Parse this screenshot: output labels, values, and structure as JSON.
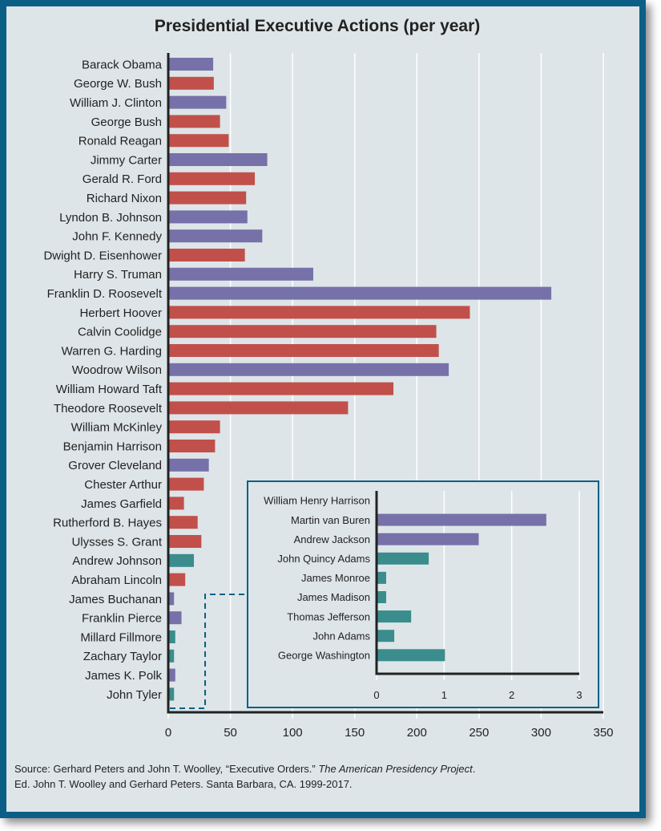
{
  "chart_data": [
    {
      "type": "bar",
      "orientation": "horizontal",
      "title": "Presidential Executive Actions (per year)",
      "xlim": [
        0,
        350
      ],
      "xticks": [
        0,
        50,
        100,
        150,
        200,
        250,
        300,
        350
      ],
      "grid": true,
      "categories": [
        "Barack Obama",
        "George W. Bush",
        "William J. Clinton",
        "George Bush",
        "Ronald Reagan",
        "Jimmy Carter",
        "Gerald R. Ford",
        "Richard Nixon",
        "Lyndon B. Johnson",
        "John F. Kennedy",
        "Dwight D. Eisenhower",
        "Harry S. Truman",
        "Franklin D. Roosevelt",
        "Herbert Hoover",
        "Calvin Coolidge",
        "Warren G. Harding",
        "Woodrow Wilson",
        "William Howard Taft",
        "Theodore Roosevelt",
        "William McKinley",
        "Benjamin Harrison",
        "Grover Cleveland",
        "Chester Arthur",
        "James Garfield",
        "Rutherford B. Hayes",
        "Ulysses S. Grant",
        "Andrew Johnson",
        "Abraham Lincoln",
        "James Buchanan",
        "Franklin Pierce",
        "Millard Fillmore",
        "Zachary Taylor",
        "James K. Polk",
        "John Tyler"
      ],
      "values": [
        35.5,
        36,
        46,
        41,
        48,
        79,
        69,
        62,
        63,
        75,
        61,
        116,
        307.5,
        242,
        215,
        217,
        225,
        180.5,
        144,
        41,
        37,
        32,
        28,
        12,
        23,
        26,
        20,
        13,
        4,
        10,
        5,
        4,
        5,
        4
      ],
      "bar_colors": [
        "purple",
        "red",
        "purple",
        "red",
        "red",
        "purple",
        "red",
        "red",
        "purple",
        "purple",
        "red",
        "purple",
        "purple",
        "red",
        "red",
        "red",
        "purple",
        "red",
        "red",
        "red",
        "red",
        "purple",
        "red",
        "red",
        "red",
        "red",
        "teal",
        "red",
        "purple",
        "purple",
        "teal",
        "teal",
        "purple",
        "teal"
      ]
    },
    {
      "type": "bar",
      "orientation": "horizontal",
      "title": "",
      "xlim": [
        0,
        3
      ],
      "xticks": [
        0,
        1,
        2,
        3
      ],
      "grid": true,
      "categories": [
        "William Henry Harrison",
        "Martin van Buren",
        "Andrew Jackson",
        "John Quincy Adams",
        "James Monroe",
        "James Madison",
        "Thomas Jefferson",
        "John Adams",
        "George Washington"
      ],
      "values": [
        0,
        2.5,
        1.5,
        0.76,
        0.13,
        0.13,
        0.5,
        0.25,
        1.0
      ],
      "bar_colors": [
        "teal",
        "purple",
        "purple",
        "teal",
        "teal",
        "teal",
        "teal",
        "teal",
        "teal"
      ]
    }
  ],
  "colors": {
    "purple": "#7671a9",
    "red": "#c1504b",
    "teal": "#3a8d8c",
    "frame": "#0b5f86",
    "background": "#dde5e8"
  },
  "source": {
    "line1_prefix": "Source: Gerhard Peters and John T. Woolley, “Executive Orders.” ",
    "line1_italic": "The American Presidency Project",
    "line1_suffix": ".",
    "line2": "Ed. John T. Woolley and Gerhard Peters. Santa Barbara, CA. 1999-2017."
  }
}
